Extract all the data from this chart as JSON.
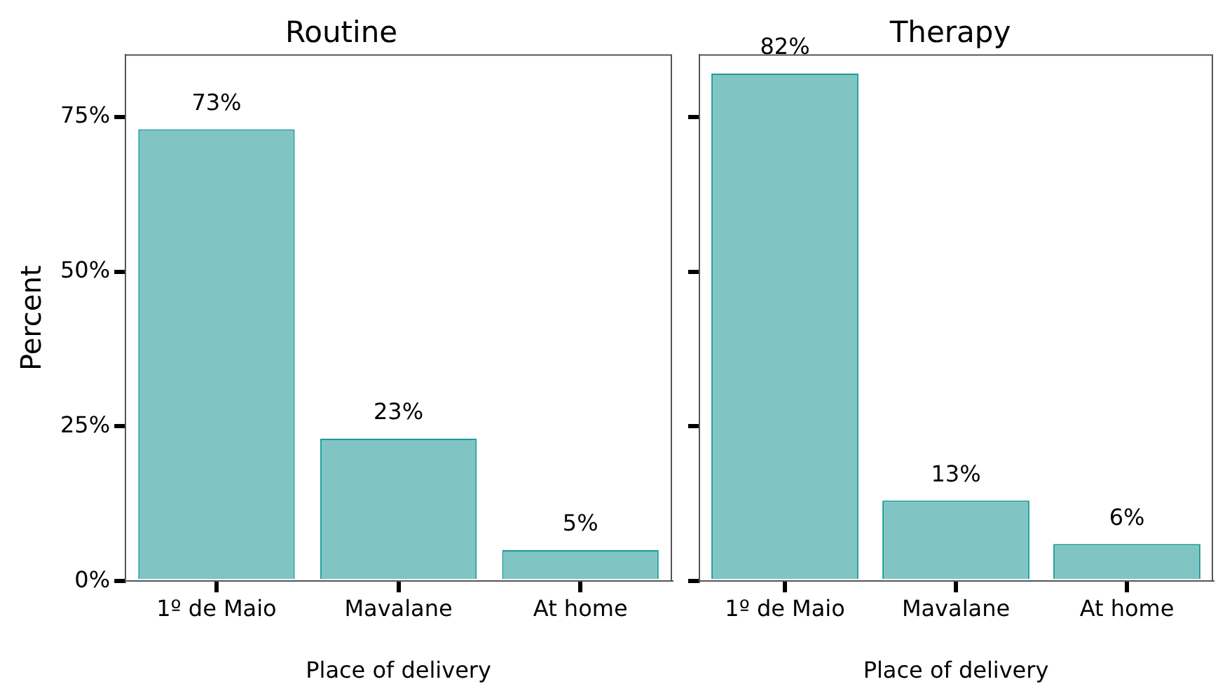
{
  "chart_data": [
    {
      "type": "bar",
      "title": "Routine",
      "xlabel": "Place of delivery",
      "ylabel": "Percent",
      "categories": [
        "1º de Maio",
        "Mavalane",
        "At home"
      ],
      "values": [
        73,
        23,
        5
      ],
      "value_labels": [
        "73%",
        "23%",
        "5%"
      ],
      "color": "#80c4c4",
      "ylim": [
        0,
        85
      ],
      "yticks": [
        {
          "value": 0,
          "label": "0%"
        },
        {
          "value": 25,
          "label": "25%"
        },
        {
          "value": 50,
          "label": "50%"
        },
        {
          "value": 75,
          "label": "75%"
        }
      ],
      "grid": false,
      "legend": false
    },
    {
      "type": "bar",
      "title": "Therapy",
      "xlabel": "Place of delivery",
      "categories": [
        "1º de Maio",
        "Mavalane",
        "At home"
      ],
      "values": [
        82,
        13,
        6
      ],
      "value_labels": [
        "82%",
        "13%",
        "6%"
      ],
      "color": "#80c4c4",
      "ylim": [
        0,
        85
      ],
      "yticks": [
        {
          "value": 0,
          "label": null
        },
        {
          "value": 25,
          "label": null
        },
        {
          "value": 50,
          "label": null
        },
        {
          "value": 75,
          "label": null
        }
      ],
      "grid": false,
      "legend": false,
      "tick_labels": "x"
    }
  ]
}
